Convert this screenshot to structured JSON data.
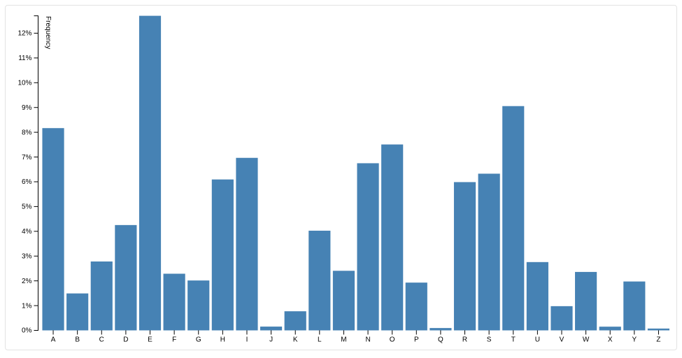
{
  "page": {
    "background": "#ffffff",
    "card_border_color": "#e3e3e3"
  },
  "chart_data": {
    "type": "bar",
    "title": "",
    "xlabel": "",
    "ylabel": "Frequency",
    "categories": [
      "A",
      "B",
      "C",
      "D",
      "E",
      "F",
      "G",
      "H",
      "I",
      "J",
      "K",
      "L",
      "M",
      "N",
      "O",
      "P",
      "Q",
      "R",
      "S",
      "T",
      "U",
      "V",
      "W",
      "X",
      "Y",
      "Z"
    ],
    "values": [
      8.167,
      1.492,
      2.782,
      4.253,
      12.702,
      2.288,
      2.015,
      6.094,
      6.966,
      0.153,
      0.772,
      4.025,
      2.406,
      6.749,
      7.507,
      1.929,
      0.095,
      5.987,
      6.327,
      9.056,
      2.758,
      0.978,
      2.36,
      0.15,
      1.974,
      0.074
    ],
    "value_unit": "percent",
    "ylim": [
      0,
      12.702
    ],
    "y_ticks": {
      "values": [
        0,
        1,
        2,
        3,
        4,
        5,
        6,
        7,
        8,
        9,
        10,
        11,
        12
      ],
      "labels": [
        "0%",
        "1%",
        "2%",
        "3%",
        "4%",
        "5%",
        "6%",
        "7%",
        "8%",
        "9%",
        "10%",
        "11%",
        "12%"
      ]
    },
    "grid": "off",
    "legend": "none",
    "bar_color": "#4682b4",
    "axis_color": "#000000"
  }
}
